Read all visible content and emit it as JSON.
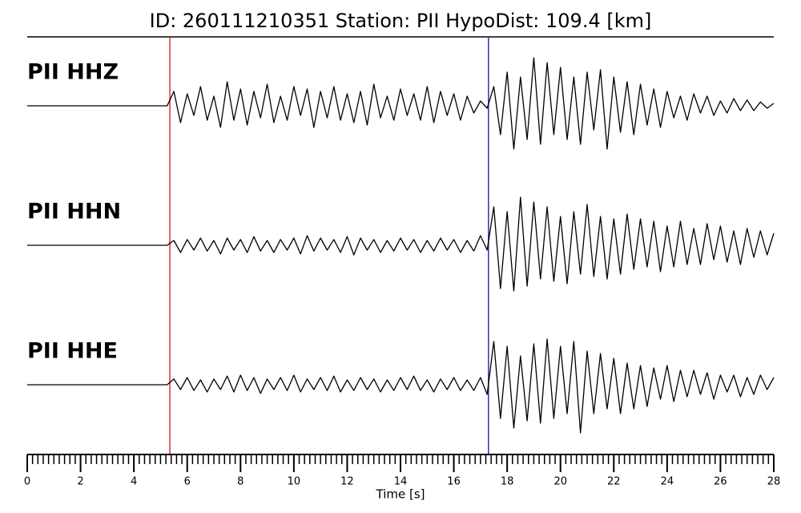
{
  "chart_data": {
    "type": "seismogram",
    "title": "ID: 260111210351    Station: PII    HypoDist:    109.4 [km]",
    "xlabel": "Time [s]",
    "xlim": [
      0,
      28
    ],
    "xticks": [
      0,
      2,
      4,
      6,
      8,
      10,
      12,
      14,
      16,
      18,
      20,
      22,
      24,
      26,
      28
    ],
    "xminor_step": 0.2,
    "label_color": "#4a9a0a",
    "picks": [
      {
        "value": 5.35,
        "color": "#e03030"
      },
      {
        "value": 17.3,
        "color": "#2f2fb0"
      }
    ],
    "x": [
      0,
      0.25,
      0.5,
      0.75,
      1,
      1.25,
      1.5,
      1.75,
      2,
      2.25,
      2.5,
      2.75,
      3,
      3.25,
      3.5,
      3.75,
      4,
      4.25,
      4.5,
      4.75,
      5,
      5.25,
      5.5,
      5.75,
      6,
      6.25,
      6.5,
      6.75,
      7,
      7.25,
      7.5,
      7.75,
      8,
      8.25,
      8.5,
      8.75,
      9,
      9.25,
      9.5,
      9.75,
      10,
      10.25,
      10.5,
      10.75,
      11,
      11.25,
      11.5,
      11.75,
      12,
      12.25,
      12.5,
      12.75,
      13,
      13.25,
      13.5,
      13.75,
      14,
      14.25,
      14.5,
      14.75,
      15,
      15.25,
      15.5,
      15.75,
      16,
      16.25,
      16.5,
      16.75,
      17,
      17.25,
      17.5,
      17.75,
      18,
      18.25,
      18.5,
      18.75,
      19,
      19.25,
      19.5,
      19.75,
      20,
      20.25,
      20.5,
      20.75,
      21,
      21.25,
      21.5,
      21.75,
      22,
      22.25,
      22.5,
      22.75,
      23,
      23.25,
      23.5,
      23.75,
      24,
      24.25,
      24.5,
      24.75,
      25,
      25.25,
      25.5,
      25.75,
      26,
      26.25,
      26.5,
      26.75,
      27,
      27.25,
      27.5,
      27.75,
      28
    ],
    "series": [
      {
        "name": "PII HHZ",
        "color": "#000000",
        "values": [
          0,
          0,
          0,
          0,
          0,
          0,
          0,
          0,
          0,
          0,
          0,
          0,
          0,
          0,
          0,
          0,
          0,
          0,
          0,
          0,
          0,
          0,
          0.3,
          -0.35,
          0.25,
          -0.2,
          0.4,
          -0.3,
          0.2,
          -0.45,
          0.5,
          -0.3,
          0.35,
          -0.4,
          0.3,
          -0.25,
          0.45,
          -0.35,
          0.2,
          -0.3,
          0.4,
          -0.2,
          0.35,
          -0.45,
          0.3,
          -0.25,
          0.4,
          -0.3,
          0.25,
          -0.35,
          0.3,
          -0.4,
          0.45,
          -0.25,
          0.2,
          -0.3,
          0.35,
          -0.2,
          0.25,
          -0.3,
          0.4,
          -0.35,
          0.3,
          -0.2,
          0.25,
          -0.3,
          0.2,
          -0.15,
          0.1,
          -0.05,
          0.4,
          -0.6,
          0.7,
          -0.9,
          0.6,
          -0.7,
          1.0,
          -0.8,
          0.9,
          -0.6,
          0.8,
          -0.7,
          0.6,
          -0.8,
          0.7,
          -0.5,
          0.75,
          -0.9,
          0.6,
          -0.55,
          0.5,
          -0.6,
          0.45,
          -0.4,
          0.35,
          -0.45,
          0.3,
          -0.25,
          0.2,
          -0.3,
          0.25,
          -0.15,
          0.2,
          -0.2,
          0.1,
          -0.15,
          0.15,
          -0.1,
          0.12,
          -0.1,
          0.08,
          -0.05,
          0.05
        ]
      },
      {
        "name": "PII HHN",
        "color": "#000000",
        "values": [
          0,
          0,
          0,
          0,
          0,
          0,
          0,
          0,
          0,
          0,
          0,
          0,
          0,
          0,
          0,
          0,
          0,
          0,
          0,
          0,
          0,
          0,
          0.1,
          -0.15,
          0.12,
          -0.1,
          0.15,
          -0.12,
          0.1,
          -0.18,
          0.15,
          -0.1,
          0.12,
          -0.15,
          0.18,
          -0.12,
          0.1,
          -0.15,
          0.12,
          -0.1,
          0.15,
          -0.18,
          0.2,
          -0.12,
          0.15,
          -0.1,
          0.12,
          -0.15,
          0.18,
          -0.2,
          0.15,
          -0.1,
          0.12,
          -0.15,
          0.1,
          -0.12,
          0.15,
          -0.1,
          0.12,
          -0.15,
          0.1,
          -0.12,
          0.15,
          -0.1,
          0.12,
          -0.15,
          0.1,
          -0.12,
          0.2,
          -0.1,
          0.8,
          -0.9,
          0.7,
          -0.95,
          1.0,
          -0.85,
          0.9,
          -0.7,
          0.8,
          -0.75,
          0.6,
          -0.8,
          0.7,
          -0.6,
          0.85,
          -0.65,
          0.6,
          -0.7,
          0.55,
          -0.6,
          0.65,
          -0.5,
          0.55,
          -0.45,
          0.5,
          -0.55,
          0.4,
          -0.45,
          0.5,
          -0.4,
          0.35,
          -0.4,
          0.45,
          -0.3,
          0.4,
          -0.35,
          0.3,
          -0.4,
          0.35,
          -0.25,
          0.3,
          -0.2,
          0.25
        ]
      },
      {
        "name": "PII HHE",
        "color": "#000000",
        "values": [
          0,
          0,
          0,
          0,
          0,
          0,
          0,
          0,
          0,
          0,
          0,
          0,
          0,
          0,
          0,
          0,
          0,
          0,
          0,
          0,
          0,
          0,
          0.12,
          -0.1,
          0.15,
          -0.12,
          0.1,
          -0.15,
          0.12,
          -0.1,
          0.18,
          -0.15,
          0.2,
          -0.12,
          0.15,
          -0.18,
          0.12,
          -0.1,
          0.15,
          -0.12,
          0.2,
          -0.15,
          0.12,
          -0.1,
          0.15,
          -0.12,
          0.18,
          -0.15,
          0.1,
          -0.12,
          0.15,
          -0.1,
          0.12,
          -0.15,
          0.1,
          -0.12,
          0.15,
          -0.1,
          0.18,
          -0.12,
          0.1,
          -0.15,
          0.12,
          -0.1,
          0.15,
          -0.12,
          0.1,
          -0.12,
          0.15,
          -0.2,
          0.9,
          -0.7,
          0.8,
          -0.9,
          0.6,
          -0.75,
          0.85,
          -0.8,
          0.95,
          -0.7,
          0.8,
          -0.6,
          0.9,
          -1.0,
          0.7,
          -0.6,
          0.65,
          -0.5,
          0.55,
          -0.6,
          0.45,
          -0.5,
          0.4,
          -0.45,
          0.35,
          -0.3,
          0.4,
          -0.35,
          0.3,
          -0.25,
          0.3,
          -0.2,
          0.25,
          -0.3,
          0.2,
          -0.15,
          0.2,
          -0.25,
          0.15,
          -0.2,
          0.2,
          -0.1,
          0.15
        ]
      }
    ]
  }
}
